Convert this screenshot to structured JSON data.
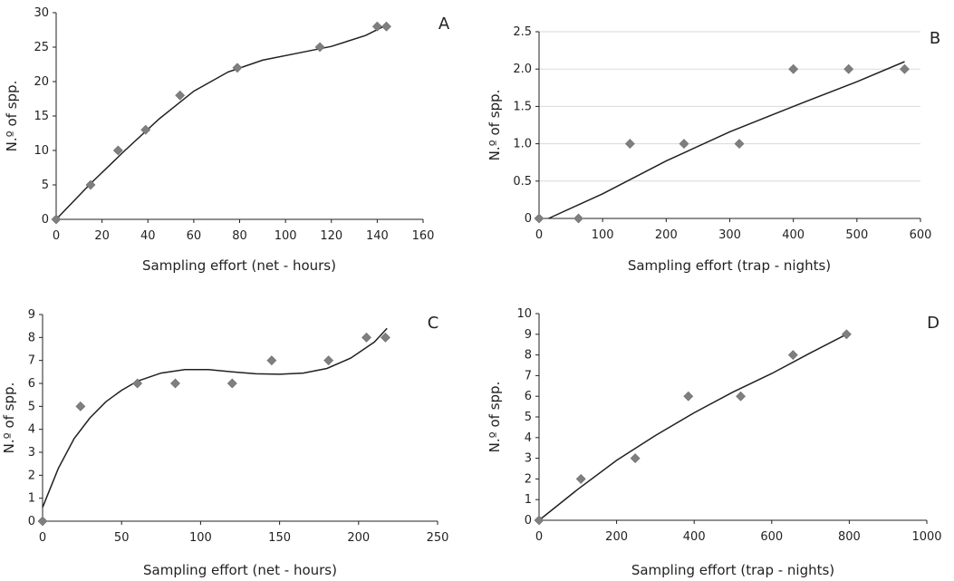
{
  "chart_data": [
    {
      "type": "scatter",
      "panel_label": "A",
      "xlabel": "Sampling effort (net - hours)",
      "ylabel": "N.º of spp.",
      "xlim": [
        0,
        160
      ],
      "ylim": [
        0,
        30
      ],
      "xticks": [
        "0",
        "20",
        "40",
        "60",
        "80",
        "100",
        "120",
        "140",
        "160"
      ],
      "yticks": [
        "0",
        "5",
        "10",
        "15",
        "20",
        "25",
        "30"
      ],
      "grid": false,
      "points": [
        [
          0,
          0
        ],
        [
          15,
          5
        ],
        [
          27,
          10
        ],
        [
          39,
          13
        ],
        [
          54,
          18
        ],
        [
          79,
          22
        ],
        [
          115,
          25
        ],
        [
          140,
          28
        ],
        [
          144,
          28
        ]
      ],
      "trendline": [
        [
          0,
          0
        ],
        [
          15,
          5.2
        ],
        [
          30,
          10
        ],
        [
          45,
          14.6
        ],
        [
          60,
          18.6
        ],
        [
          75,
          21.4
        ],
        [
          90,
          23.1
        ],
        [
          105,
          24.1
        ],
        [
          120,
          25.1
        ],
        [
          135,
          26.7
        ],
        [
          144,
          28.2
        ]
      ]
    },
    {
      "type": "scatter",
      "panel_label": "B",
      "xlabel": "Sampling effort (trap - nights)",
      "ylabel": "N.º of spp.",
      "xlim": [
        0,
        600
      ],
      "ylim": [
        0,
        2.5
      ],
      "xticks": [
        "0",
        "100",
        "200",
        "300",
        "400",
        "500",
        "600"
      ],
      "yticks": [
        "0",
        "0.5",
        "1.0",
        "1.5",
        "2.0",
        "2.5"
      ],
      "grid": true,
      "points": [
        [
          0,
          0
        ],
        [
          62,
          0
        ],
        [
          143,
          1
        ],
        [
          228,
          1
        ],
        [
          315,
          1
        ],
        [
          400,
          2
        ],
        [
          487,
          2
        ],
        [
          575,
          2
        ]
      ],
      "trendline": [
        [
          15,
          0
        ],
        [
          100,
          0.33
        ],
        [
          200,
          0.77
        ],
        [
          300,
          1.16
        ],
        [
          400,
          1.5
        ],
        [
          500,
          1.83
        ],
        [
          575,
          2.1
        ]
      ]
    },
    {
      "type": "scatter",
      "panel_label": "C",
      "xlabel": "Sampling effort (net - hours)",
      "ylabel": "N.º of spp.",
      "xlim": [
        0,
        250
      ],
      "ylim": [
        0,
        9
      ],
      "xticks": [
        "0",
        "50",
        "100",
        "150",
        "200",
        "250"
      ],
      "yticks": [
        "0",
        "1",
        "2",
        "3",
        "4",
        "5",
        "6",
        "7",
        "8",
        "9"
      ],
      "grid": false,
      "points": [
        [
          0,
          0
        ],
        [
          24,
          5
        ],
        [
          60,
          6
        ],
        [
          84,
          6
        ],
        [
          120,
          6
        ],
        [
          145,
          7
        ],
        [
          181,
          7
        ],
        [
          205,
          8
        ],
        [
          217,
          8
        ]
      ],
      "trendline": [
        [
          0,
          0.6
        ],
        [
          10,
          2.3
        ],
        [
          20,
          3.6
        ],
        [
          30,
          4.5
        ],
        [
          40,
          5.2
        ],
        [
          50,
          5.7
        ],
        [
          60,
          6.1
        ],
        [
          75,
          6.45
        ],
        [
          90,
          6.6
        ],
        [
          105,
          6.6
        ],
        [
          120,
          6.5
        ],
        [
          135,
          6.42
        ],
        [
          150,
          6.4
        ],
        [
          165,
          6.45
        ],
        [
          180,
          6.65
        ],
        [
          195,
          7.1
        ],
        [
          210,
          7.8
        ],
        [
          218,
          8.4
        ]
      ]
    },
    {
      "type": "scatter",
      "panel_label": "D",
      "xlabel": "Sampling effort (trap - nights)",
      "ylabel": "N.º of spp.",
      "xlim": [
        0,
        1000
      ],
      "ylim": [
        0,
        10
      ],
      "xticks": [
        "0",
        "200",
        "400",
        "600",
        "800",
        "1000"
      ],
      "yticks": [
        "0",
        "1",
        "2",
        "3",
        "4",
        "5",
        "6",
        "7",
        "8",
        "9",
        "10"
      ],
      "grid": false,
      "points": [
        [
          0,
          0
        ],
        [
          108,
          2
        ],
        [
          248,
          3
        ],
        [
          385,
          6
        ],
        [
          520,
          6
        ],
        [
          655,
          8
        ],
        [
          793,
          9
        ]
      ],
      "trendline": [
        [
          0,
          0
        ],
        [
          100,
          1.5
        ],
        [
          200,
          2.9
        ],
        [
          300,
          4.1
        ],
        [
          400,
          5.2
        ],
        [
          500,
          6.2
        ],
        [
          600,
          7.1
        ],
        [
          700,
          8.1
        ],
        [
          793,
          9
        ]
      ]
    }
  ]
}
